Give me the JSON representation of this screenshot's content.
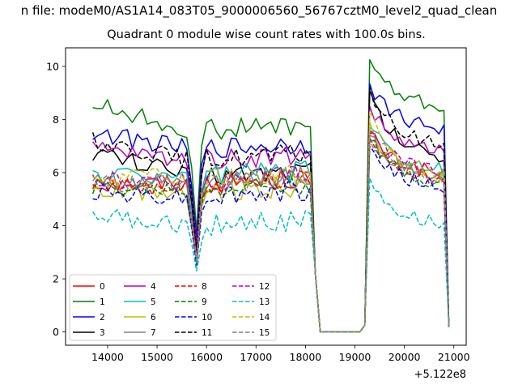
{
  "figure": {
    "suptitle": "n file: modeM0/AS1A14_083T05_9000006560_56767cztM0_level2_quad_clean",
    "title": "Quadrant 0 module wise count rates with 100.0s bins.",
    "x_offset_label": "+5.122e8"
  },
  "chart_data": {
    "type": "line",
    "title": "Quadrant 0 module wise count rates with 100.0s bins.",
    "xlabel": "",
    "ylabel": "",
    "x_offset": 512200000,
    "xlim": [
      13150,
      21250
    ],
    "ylim": [
      -0.5,
      10.7
    ],
    "xticks": [
      14000,
      15000,
      16000,
      17000,
      18000,
      19000,
      20000,
      21000
    ],
    "xtick_labels": [
      "14000",
      "15000",
      "16000",
      "17000",
      "18000",
      "19000",
      "20000",
      "21000"
    ],
    "yticks": [
      0,
      2,
      4,
      6,
      8,
      10
    ],
    "ytick_labels": [
      "0",
      "2",
      "4",
      "6",
      "8",
      "10"
    ],
    "grid": false,
    "legend_position": "lower-left",
    "legend_columns": 4,
    "bin_width": 100,
    "x_start": 13700,
    "x_end": 20900,
    "series": [
      {
        "name": "0",
        "color": "#ff0000",
        "dash": "solid",
        "base": 5.6,
        "seg3": 6.5,
        "dip": 2.7
      },
      {
        "name": "1",
        "color": "#008000",
        "dash": "solid",
        "base": 7.6,
        "seg1": 8.6,
        "seg3": 9.0,
        "peak": 10.25,
        "dip": 3.8
      },
      {
        "name": "2",
        "color": "#0000ff",
        "dash": "solid",
        "base": 6.9,
        "seg1": 7.5,
        "seg3": 8.2,
        "peak": 9.35,
        "dip": 3.5
      },
      {
        "name": "3",
        "color": "#000000",
        "dash": "solid",
        "base": 5.9,
        "seg1": 6.8,
        "seg3": 7.2,
        "peak": 9.1,
        "dip": 2.9
      },
      {
        "name": "4",
        "color": "#bf00bf",
        "dash": "solid",
        "base": 6.5,
        "seg1": 6.9,
        "seg3": 7.3,
        "peak": 8.5,
        "dip": 3.3
      },
      {
        "name": "5",
        "color": "#00bfbf",
        "dash": "solid",
        "base": 5.9,
        "seg3": 6.7,
        "dip": 2.8
      },
      {
        "name": "6",
        "color": "#bfbf00",
        "dash": "solid",
        "base": 5.3,
        "seg3": 6.4,
        "peak": 7.9,
        "dip": 2.6
      },
      {
        "name": "7",
        "color": "#808080",
        "dash": "solid",
        "base": 5.7,
        "seg3": 6.4,
        "dip": 2.5
      },
      {
        "name": "8",
        "color": "#ff0000",
        "dash": "dashed",
        "base": 5.5,
        "seg3": 6.3,
        "dip": 2.8
      },
      {
        "name": "9",
        "color": "#008000",
        "dash": "dashed",
        "base": 5.4,
        "seg3": 6.2,
        "dip": 2.7
      },
      {
        "name": "10",
        "color": "#0000ff",
        "dash": "dashed",
        "base": 5.1,
        "seg1": 5.3,
        "seg3": 6.0,
        "dip": 2.5
      },
      {
        "name": "11",
        "color": "#000000",
        "dash": "dashed",
        "base": 6.5,
        "seg1": 7.2,
        "seg3": 7.6,
        "peak": 9.2,
        "dip": 3.1
      },
      {
        "name": "12",
        "color": "#bf00bf",
        "dash": "dashed",
        "base": 5.7,
        "seg3": 6.6,
        "dip": 2.8
      },
      {
        "name": "13",
        "color": "#00bfbf",
        "dash": "dashed",
        "base": 4.0,
        "seg1": 4.4,
        "seg3": 4.7,
        "peak": 5.8,
        "dip": 2.3
      },
      {
        "name": "14",
        "color": "#bfbf00",
        "dash": "dashed",
        "base": 5.8,
        "seg3": 6.5,
        "peak": 8.3,
        "dip": 2.7
      },
      {
        "name": "15",
        "color": "#808080",
        "dash": "dashed",
        "base": 5.6,
        "seg3": 6.2,
        "dip": 2.6
      }
    ]
  }
}
